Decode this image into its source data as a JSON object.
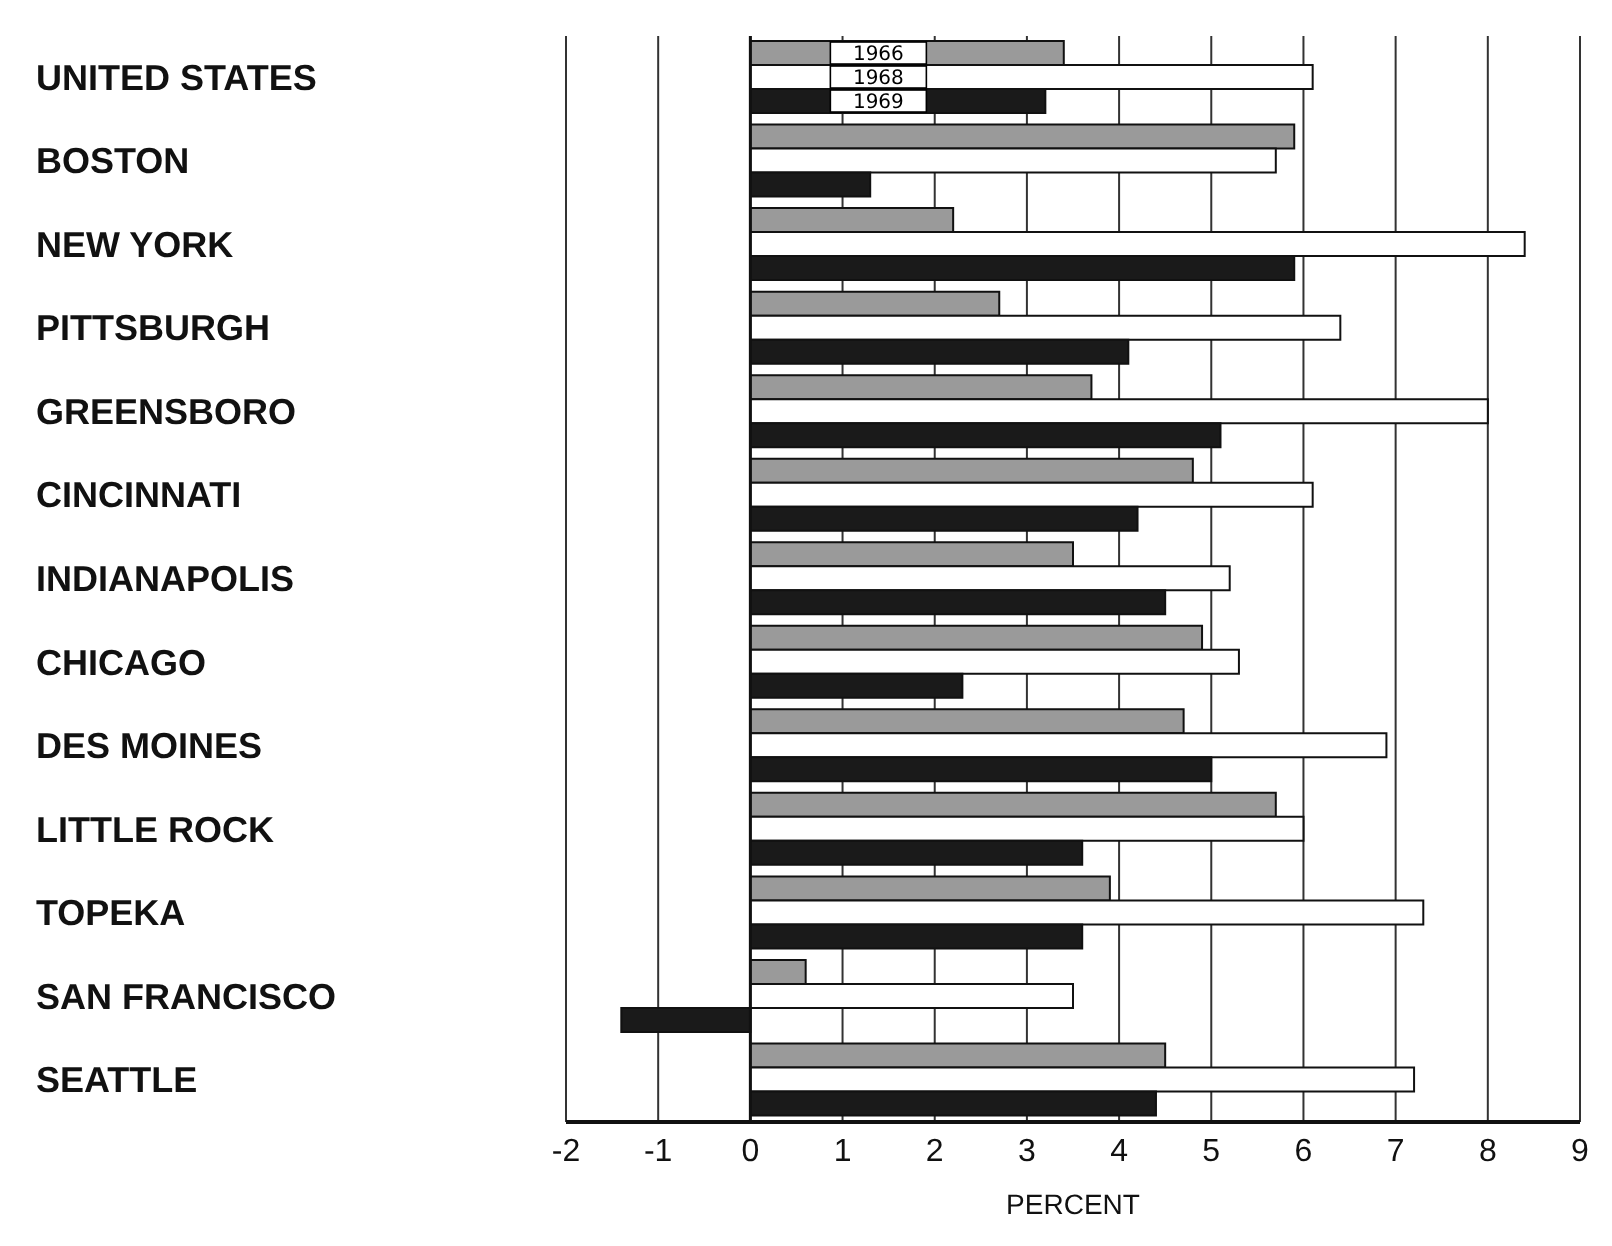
{
  "chart_data": {
    "type": "bar",
    "orientation": "horizontal",
    "xlabel": "PERCENT",
    "categories": [
      "UNITED STATES",
      "BOSTON",
      "NEW YORK",
      "PITTSBURGH",
      "GREENSBORO",
      "CINCINNATI",
      "INDIANAPOLIS",
      "CHICAGO",
      "DES MOINES",
      "LITTLE ROCK",
      "TOPEKA",
      "SAN FRANCISCO",
      "SEATTLE"
    ],
    "series": [
      {
        "name": "1966",
        "color": "#9a9a9a",
        "values": [
          3.4,
          5.9,
          2.2,
          2.7,
          3.7,
          4.8,
          3.5,
          4.9,
          4.7,
          5.7,
          3.9,
          0.6,
          4.5
        ]
      },
      {
        "name": "1968",
        "color": "#ffffff",
        "values": [
          6.1,
          5.7,
          8.4,
          6.4,
          8.0,
          6.1,
          5.2,
          5.3,
          6.9,
          6.0,
          7.3,
          3.5,
          7.2
        ]
      },
      {
        "name": "1969",
        "color": "#1a1a1a",
        "values": [
          3.2,
          1.3,
          5.9,
          4.1,
          5.1,
          4.2,
          4.5,
          2.3,
          5.0,
          3.6,
          3.6,
          -1.4,
          4.4
        ]
      }
    ],
    "xlim": [
      -2,
      9
    ],
    "xticks": [
      -2,
      -1,
      0,
      1,
      2,
      3,
      4,
      5,
      6,
      7,
      8,
      9
    ],
    "grid": "x"
  }
}
